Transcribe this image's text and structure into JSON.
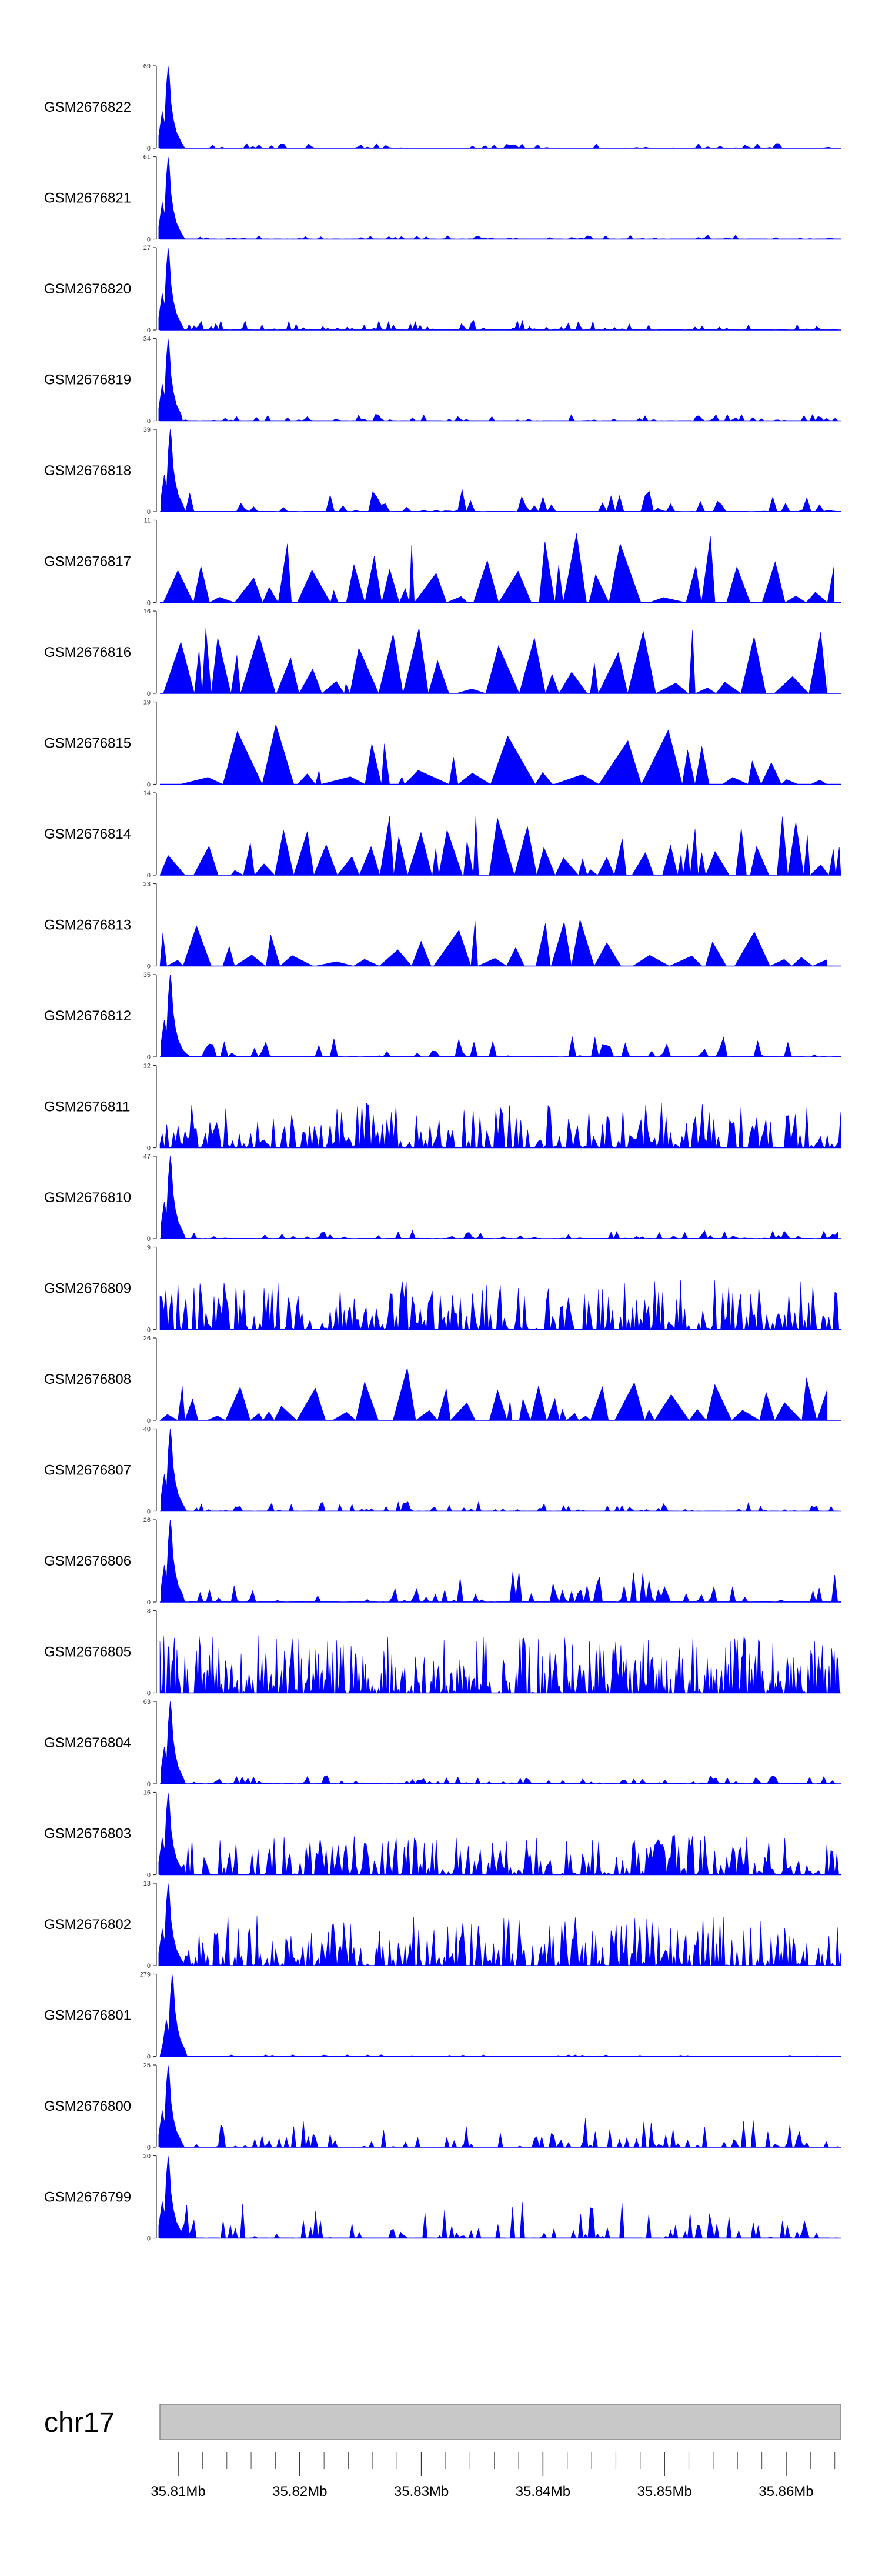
{
  "colors": {
    "signal": "#0000ff",
    "axis": "#333333",
    "ideogram_fill": "#c8c8c8",
    "ideogram_stroke": "#888888"
  },
  "chart_data": {
    "type": "area",
    "title": "",
    "x_unit": "Mb",
    "xlim_mb": [
      35.8085,
      35.8645
    ],
    "chromosome": {
      "name": "chr17",
      "ticks": [
        "35.81Mb",
        "35.82Mb",
        "35.83Mb",
        "35.84Mb",
        "35.85Mb",
        "35.86Mb"
      ],
      "tick_values_mb": [
        35.81,
        35.82,
        35.83,
        35.84,
        35.85,
        35.86
      ]
    },
    "series": [
      {
        "name": "GSM2676822",
        "ymax": 69,
        "profile": "peak",
        "span": [
          0,
          1
        ],
        "level": 0.06,
        "density": 55,
        "peak_at": 0.012
      },
      {
        "name": "GSM2676821",
        "ymax": 61,
        "profile": "peak",
        "span": [
          0,
          1
        ],
        "level": 0.05,
        "density": 55,
        "peak_at": 0.012
      },
      {
        "name": "GSM2676820",
        "ymax": 27,
        "profile": "peak",
        "span": [
          0,
          1
        ],
        "level": 0.12,
        "density": 70,
        "peak_at": 0.012
      },
      {
        "name": "GSM2676819",
        "ymax": 34,
        "profile": "peak",
        "span": [
          0,
          1
        ],
        "level": 0.08,
        "density": 60,
        "peak_at": 0.012
      },
      {
        "name": "GSM2676818",
        "ymax": 39,
        "profile": "peak",
        "span": [
          0,
          1
        ],
        "level": 0.28,
        "density": 40,
        "peak_at": 0.015
      },
      {
        "name": "GSM2676817",
        "ymax": 11,
        "profile": "sparse",
        "span": [
          0.005,
          0.99
        ],
        "level": 0.8,
        "density": 38,
        "peak_at": null
      },
      {
        "name": "GSM2676816",
        "ymax": 16,
        "profile": "sparse",
        "span": [
          0.005,
          0.98
        ],
        "level": 0.75,
        "density": 40,
        "peak_at": null
      },
      {
        "name": "GSM2676815",
        "ymax": 19,
        "profile": "sparse",
        "span": [
          0.03,
          0.98
        ],
        "level": 0.75,
        "density": 30,
        "peak_at": null
      },
      {
        "name": "GSM2676814",
        "ymax": 14,
        "profile": "sparse",
        "span": [
          0,
          1
        ],
        "level": 0.7,
        "density": 60,
        "peak_at": null
      },
      {
        "name": "GSM2676813",
        "ymax": 23,
        "profile": "sparse",
        "span": [
          0,
          0.98
        ],
        "level": 0.6,
        "density": 36,
        "peak_at": null
      },
      {
        "name": "GSM2676812",
        "ymax": 35,
        "profile": "peak",
        "span": [
          0,
          1
        ],
        "level": 0.25,
        "density": 45,
        "peak_at": 0.015
      },
      {
        "name": "GSM2676811",
        "ymax": 12,
        "profile": "dense",
        "span": [
          0,
          1
        ],
        "level": 0.55,
        "density": 75,
        "peak_at": null
      },
      {
        "name": "GSM2676810",
        "ymax": 47,
        "profile": "peak",
        "span": [
          0,
          1
        ],
        "level": 0.1,
        "density": 60,
        "peak_at": 0.015
      },
      {
        "name": "GSM2676809",
        "ymax": 9,
        "profile": "dense",
        "span": [
          0,
          1
        ],
        "level": 0.6,
        "density": 85,
        "peak_at": null
      },
      {
        "name": "GSM2676808",
        "ymax": 26,
        "profile": "sparse",
        "span": [
          0,
          0.98
        ],
        "level": 0.6,
        "density": 38,
        "peak_at": null
      },
      {
        "name": "GSM2676807",
        "ymax": 40,
        "profile": "peak",
        "span": [
          0,
          1
        ],
        "level": 0.12,
        "density": 70,
        "peak_at": 0.015
      },
      {
        "name": "GSM2676806",
        "ymax": 26,
        "profile": "peak",
        "span": [
          0,
          1
        ],
        "level": 0.4,
        "density": 55,
        "peak_at": 0.015
      },
      {
        "name": "GSM2676805",
        "ymax": 8,
        "profile": "dense",
        "span": [
          0,
          1
        ],
        "level": 0.7,
        "density": 130,
        "peak_at": null
      },
      {
        "name": "GSM2676804",
        "ymax": 63,
        "profile": "peak",
        "span": [
          0,
          1
        ],
        "level": 0.1,
        "density": 60,
        "peak_at": 0.015
      },
      {
        "name": "GSM2676803",
        "ymax": 16,
        "profile": "dense",
        "span": [
          0,
          1
        ],
        "level": 0.5,
        "density": 85,
        "peak_at": 0.012
      },
      {
        "name": "GSM2676802",
        "ymax": 13,
        "profile": "dense",
        "span": [
          0,
          1
        ],
        "level": 0.6,
        "density": 100,
        "peak_at": 0.012
      },
      {
        "name": "GSM2676801",
        "ymax": 279,
        "profile": "peak",
        "span": [
          0,
          1
        ],
        "level": 0.02,
        "density": 50,
        "peak_at": 0.018
      },
      {
        "name": "GSM2676800",
        "ymax": 25,
        "profile": "peak",
        "span": [
          0,
          1
        ],
        "level": 0.35,
        "density": 70,
        "peak_at": 0.012
      },
      {
        "name": "GSM2676799",
        "ymax": 20,
        "profile": "peak",
        "span": [
          0,
          1
        ],
        "level": 0.45,
        "density": 70,
        "peak_at": 0.012
      }
    ]
  }
}
